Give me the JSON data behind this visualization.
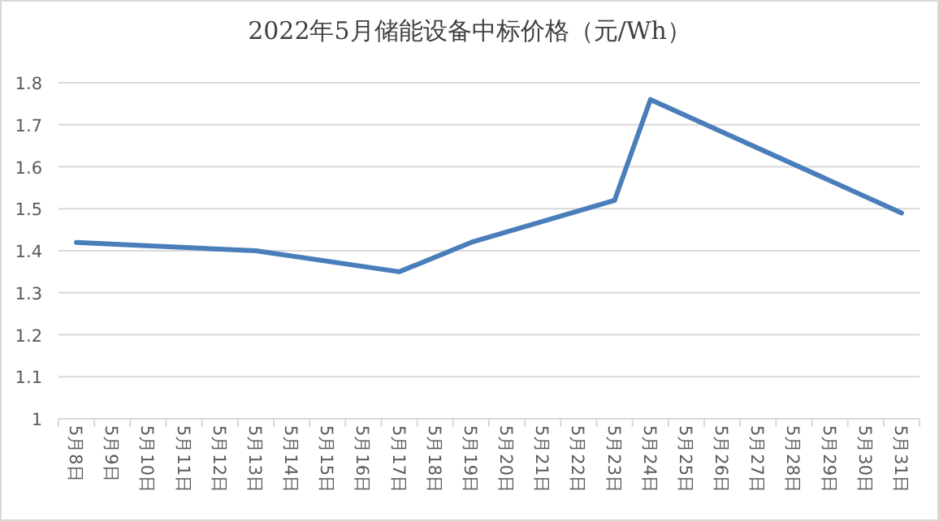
{
  "chart_data": {
    "type": "line",
    "title": "2022年5月储能设备中标价格（元/Wh）",
    "categories": [
      "5月8日",
      "5月9日",
      "5月10日",
      "5月11日",
      "5月12日",
      "5月13日",
      "5月14日",
      "5月15日",
      "5月16日",
      "5月17日",
      "5月18日",
      "5月19日",
      "5月20日",
      "5月21日",
      "5月22日",
      "5月23日",
      "5月24日",
      "5月25日",
      "5月26日",
      "5月27日",
      "5月28日",
      "5月29日",
      "5月30日",
      "5月31日"
    ],
    "series": [
      {
        "color": "#4a7ebb",
        "values": [
          1.42,
          null,
          null,
          null,
          null,
          1.4,
          null,
          null,
          null,
          1.35,
          null,
          1.42,
          null,
          null,
          null,
          1.52,
          1.76,
          null,
          null,
          null,
          null,
          null,
          null,
          1.49
        ]
      }
    ],
    "ylim": [
      1,
      1.8
    ],
    "yticks": [
      1,
      1.1,
      1.2,
      1.3,
      1.4,
      1.5,
      1.6,
      1.7,
      1.8
    ],
    "grid": "y",
    "marker": "none",
    "line_style": "solid"
  }
}
